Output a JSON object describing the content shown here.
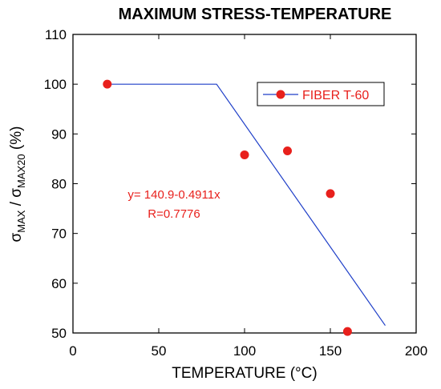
{
  "chart_data": {
    "type": "scatter",
    "title": "MAXIMUM STRESS-TEMPERATURE",
    "xlabel": "TEMPERATURE (°C)",
    "ylabel": {
      "prefix_main": "σ",
      "prefix_sub": "MAX",
      "sep": " / ",
      "suffix_main": "σ",
      "suffix_sub": "MAX20",
      "unit": " (%)"
    },
    "xlim": [
      0,
      200
    ],
    "ylim": [
      50,
      110
    ],
    "xticks": [
      0,
      50,
      100,
      150,
      200
    ],
    "yticks": [
      50,
      60,
      70,
      80,
      90,
      100,
      110
    ],
    "grid": false,
    "legend_position": "top-right",
    "series": [
      {
        "name": "FIBER T-60",
        "marker_color": "#e8201c",
        "line_color": "#1f3fc8",
        "points": [
          {
            "x": 20,
            "y": 100
          },
          {
            "x": 100,
            "y": 85.8
          },
          {
            "x": 125,
            "y": 86.6
          },
          {
            "x": 150,
            "y": 78
          },
          {
            "x": 160,
            "y": 50.3
          }
        ]
      }
    ],
    "fit_line": {
      "color": "#1f3fc8",
      "points": [
        {
          "x": 20,
          "y": 100
        },
        {
          "x": 83.7,
          "y": 100
        },
        {
          "x": 182,
          "y": 51.5
        }
      ]
    },
    "annotations": {
      "equation": "y= 140.9-0.4911x",
      "r_value": "R=0.7776"
    }
  }
}
